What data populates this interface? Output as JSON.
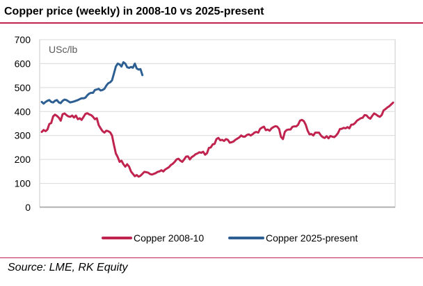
{
  "header": {
    "title": "Copper price (weekly) in 2008-10 vs 2025-present"
  },
  "footer": {
    "source": "Source: LME, RK Equity"
  },
  "chart_data": {
    "type": "line",
    "title": "Copper price (weekly) in 2008-10 vs 2025-present",
    "unit_label": "USc/lb",
    "xlabel": "",
    "ylabel": "",
    "ylim": [
      0,
      700
    ],
    "yticks": [
      0,
      100,
      200,
      300,
      400,
      500,
      600,
      700
    ],
    "grid": true,
    "legend_position": "bottom",
    "series": [
      {
        "name": "Copper 2008-10",
        "color": "#C0234E",
        "values": [
          315,
          323,
          318,
          325,
          348,
          352,
          380,
          387,
          382,
          374,
          362,
          389,
          392,
          385,
          380,
          378,
          383,
          375,
          383,
          368,
          372,
          365,
          378,
          390,
          393,
          388,
          385,
          378,
          368,
          372,
          343,
          330,
          318,
          312,
          320,
          318,
          313,
          300,
          262,
          225,
          210,
          190,
          195,
          180,
          170,
          180,
          170,
          150,
          140,
          130,
          135,
          128,
          132,
          140,
          148,
          147,
          145,
          139,
          137,
          140,
          143,
          148,
          150,
          155,
          150,
          158,
          163,
          168,
          177,
          182,
          190,
          200,
          203,
          195,
          190,
          200,
          212,
          213,
          200,
          210,
          215,
          222,
          225,
          230,
          228,
          232,
          220,
          226,
          248,
          250,
          263,
          265,
          285,
          290,
          280,
          282,
          277,
          285,
          282,
          270,
          272,
          275,
          282,
          287,
          292,
          300,
          295,
          295,
          302,
          305,
          300,
          305,
          312,
          315,
          312,
          328,
          333,
          337,
          322,
          325,
          320,
          330,
          335,
          339,
          337,
          327,
          294,
          285,
          315,
          323,
          325,
          325,
          336,
          338,
          338,
          345,
          362,
          365,
          360,
          345,
          320,
          305,
          306,
          300,
          312,
          312,
          312,
          300,
          293,
          290,
          297,
          288,
          298,
          295,
          293,
          300,
          310,
          327,
          328,
          332,
          330,
          335,
          330,
          345,
          346,
          352,
          362,
          367,
          372,
          374,
          385,
          384,
          375,
          370,
          382,
          392,
          388,
          382,
          378,
          385,
          405,
          410,
          417,
          422,
          430,
          437
        ]
      },
      {
        "name": "Copper 2025-present",
        "color": "#2E5F93",
        "values": [
          440,
          433,
          440,
          445,
          448,
          440,
          438,
          445,
          448,
          438,
          435,
          445,
          450,
          448,
          443,
          438,
          440,
          442,
          445,
          448,
          452,
          455,
          455,
          458,
          468,
          475,
          478,
          478,
          490,
          492,
          495,
          488,
          490,
          495,
          508,
          518,
          522,
          530,
          558,
          588,
          600,
          597,
          588,
          606,
          600,
          585,
          582,
          586,
          583,
          600,
          580,
          575,
          577,
          552
        ]
      }
    ]
  }
}
